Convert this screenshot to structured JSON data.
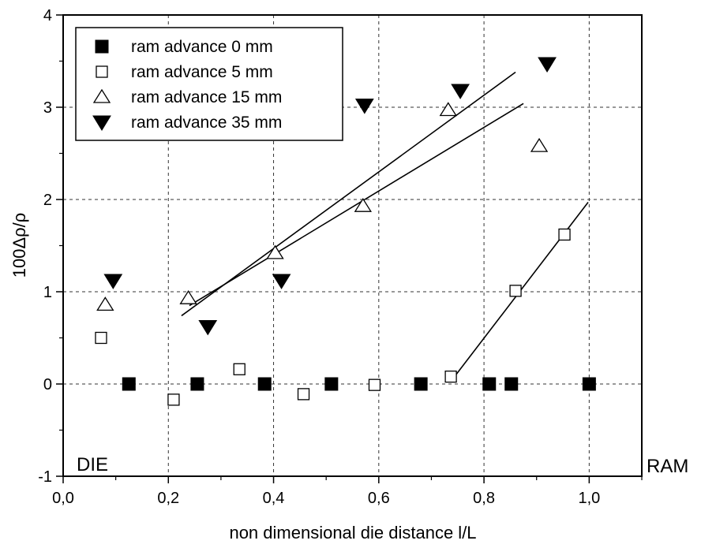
{
  "chart_data": {
    "type": "scatter",
    "xlabel": "non dimensional die distance l/L",
    "ylabel": "100Δρ/ρ",
    "xlim": [
      0.0,
      1.1
    ],
    "ylim": [
      -1,
      4
    ],
    "x_ticks": [
      0.0,
      0.2,
      0.4,
      0.6,
      0.8,
      1.0
    ],
    "x_tick_labels": [
      "0,0",
      "0,2",
      "0,4",
      "0,6",
      "0,8",
      "1,0"
    ],
    "y_ticks": [
      -1,
      0,
      1,
      2,
      3,
      4
    ],
    "y_tick_labels": [
      "-1",
      "0",
      "1",
      "2",
      "3",
      "4"
    ],
    "grid": true,
    "grid_style": "dashed",
    "legend_position": "top-left",
    "annotations": {
      "left": "DIE",
      "right": "RAM"
    },
    "series": [
      {
        "name": "ram advance 0 mm",
        "marker": "filled-square",
        "x": [
          0.125,
          0.255,
          0.383,
          0.51,
          0.68,
          0.81,
          0.852,
          1.0
        ],
        "y": [
          0,
          0,
          0,
          0,
          0,
          0,
          0,
          0
        ]
      },
      {
        "name": "ram advance 5 mm",
        "marker": "open-square",
        "x": [
          0.072,
          0.21,
          0.335,
          0.457,
          0.592,
          0.737,
          0.86,
          0.953
        ],
        "y": [
          0.5,
          -0.17,
          0.16,
          -0.11,
          -0.01,
          0.08,
          1.01,
          1.62
        ]
      },
      {
        "name": "ram advance 15 mm",
        "marker": "open-triangle-up",
        "x": [
          0.08,
          0.238,
          0.403,
          0.57,
          0.732,
          0.905
        ],
        "y": [
          0.86,
          0.93,
          1.42,
          1.93,
          2.97,
          2.58
        ]
      },
      {
        "name": "ram advance 35 mm",
        "marker": "filled-triangle-down",
        "x": [
          0.095,
          0.275,
          0.415,
          0.573,
          0.755,
          0.92
        ],
        "y": [
          1.12,
          0.62,
          1.12,
          3.02,
          3.18,
          3.47
        ]
      }
    ],
    "fit_lines": [
      {
        "x": [
          0.225,
          0.86
        ],
        "y": [
          0.74,
          3.38
        ]
      },
      {
        "x": [
          0.24,
          0.875
        ],
        "y": [
          0.85,
          3.04
        ]
      },
      {
        "x": [
          0.74,
          0.998
        ],
        "y": [
          0.05,
          1.97
        ]
      }
    ]
  }
}
